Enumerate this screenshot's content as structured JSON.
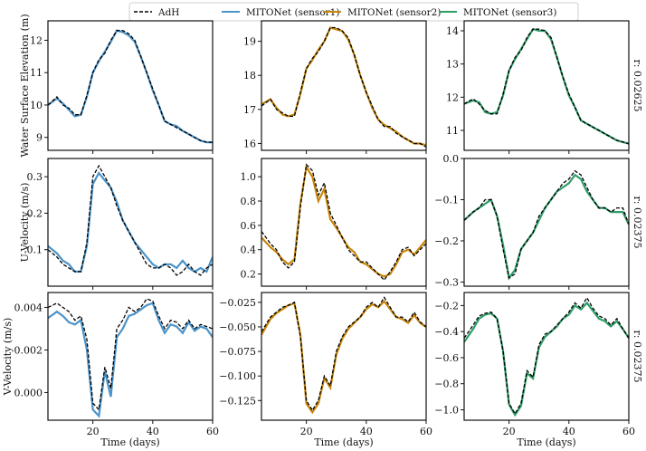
{
  "figure": {
    "legend": [
      {
        "label": "AdH",
        "color": "#000000",
        "dashed": true
      },
      {
        "label": "MITONet (sensor1)",
        "color": "#4a93c9",
        "dashed": false
      },
      {
        "label": "MITONet (sensor2)",
        "color": "#c8860a",
        "dashed": false
      },
      {
        "label": "MITONet (sensor3)",
        "color": "#2e9e68",
        "dashed": false
      }
    ]
  },
  "chart_data": {
    "type": "line",
    "x_label": "Time (days)",
    "xlim": [
      5,
      60
    ],
    "xticks": [
      20,
      40,
      60
    ],
    "x_knots": [
      5,
      8,
      10,
      12,
      14,
      16,
      18,
      20,
      22,
      24,
      26,
      28,
      30,
      32,
      34,
      36,
      38,
      40,
      42,
      44,
      46,
      48,
      50,
      52,
      54,
      56,
      58,
      60
    ],
    "rows": [
      {
        "ylabel": "Water Surface Elevation (m)",
        "r_label": "r: 0.02625",
        "panels": [
          {
            "ylim": [
              8.6,
              12.6
            ],
            "yticks": [
              9,
              10,
              11,
              12
            ],
            "ytick_labels": [
              "9",
              "10",
              "11",
              "12"
            ],
            "adh": [
              10.0,
              10.25,
              10.0,
              9.9,
              9.7,
              9.7,
              10.3,
              11.0,
              11.4,
              11.6,
              12.0,
              12.3,
              12.3,
              12.2,
              12.0,
              11.5,
              11.0,
              10.5,
              10.0,
              9.5,
              9.4,
              9.3,
              9.2,
              9.1,
              9.0,
              8.9,
              8.85,
              8.85
            ],
            "model": [
              10.0,
              10.2,
              10.05,
              9.85,
              9.65,
              9.7,
              10.25,
              11.0,
              11.35,
              11.65,
              11.95,
              12.3,
              12.25,
              12.15,
              11.95,
              11.5,
              11.0,
              10.45,
              10.0,
              9.5,
              9.4,
              9.35,
              9.2,
              9.1,
              9.0,
              8.9,
              8.85,
              8.85
            ],
            "model_color": "#4a93c9"
          },
          {
            "ylim": [
              15.8,
              19.6
            ],
            "yticks": [
              16,
              17,
              18,
              19
            ],
            "ytick_labels": [
              "16",
              "17",
              "18",
              "19"
            ],
            "adh": [
              17.1,
              17.3,
              17.0,
              16.9,
              16.8,
              16.8,
              17.5,
              18.2,
              18.5,
              18.7,
              19.0,
              19.4,
              19.4,
              19.3,
              19.1,
              18.6,
              18.0,
              17.5,
              17.1,
              16.7,
              16.5,
              16.5,
              16.3,
              16.2,
              16.1,
              16.0,
              16.0,
              15.9
            ],
            "model": [
              17.15,
              17.3,
              17.05,
              16.85,
              16.8,
              16.85,
              17.45,
              18.2,
              18.45,
              18.75,
              19.0,
              19.4,
              19.35,
              19.3,
              19.05,
              18.6,
              18.0,
              17.5,
              17.05,
              16.7,
              16.55,
              16.45,
              16.35,
              16.2,
              16.1,
              16.0,
              16.0,
              15.95
            ],
            "model_color": "#c8860a"
          },
          {
            "ylim": [
              10.4,
              14.3
            ],
            "yticks": [
              11,
              12,
              13,
              14
            ],
            "ytick_labels": [
              "11",
              "12",
              "13",
              "14"
            ],
            "adh": [
              11.8,
              11.95,
              11.8,
              11.6,
              11.5,
              11.5,
              12.1,
              12.8,
              13.2,
              13.4,
              13.8,
              14.05,
              14.05,
              14.0,
              13.8,
              13.2,
              12.6,
              12.1,
              11.7,
              11.3,
              11.2,
              11.1,
              11.0,
              10.9,
              10.8,
              10.7,
              10.65,
              10.6
            ],
            "model": [
              11.8,
              11.9,
              11.85,
              11.55,
              11.5,
              11.55,
              12.05,
              12.8,
              13.15,
              13.45,
              13.75,
              14.05,
              14.0,
              14.0,
              13.75,
              13.2,
              12.6,
              12.05,
              11.7,
              11.3,
              11.2,
              11.1,
              11.0,
              10.9,
              10.8,
              10.7,
              10.65,
              10.6
            ],
            "model_color": "#2e9e68"
          }
        ]
      },
      {
        "ylabel": "U-Velocity (m/s)",
        "r_label": "r: 0.02375",
        "panels": [
          {
            "ylim": [
              0.0,
              0.35
            ],
            "yticks": [
              0.1,
              0.2,
              0.3
            ],
            "ytick_labels": [
              "0.1",
              "0.2",
              "0.3"
            ],
            "adh": [
              0.1,
              0.08,
              0.06,
              0.05,
              0.04,
              0.04,
              0.12,
              0.3,
              0.33,
              0.3,
              0.27,
              0.22,
              0.18,
              0.15,
              0.12,
              0.09,
              0.06,
              0.05,
              0.05,
              0.06,
              0.05,
              0.03,
              0.04,
              0.06,
              0.04,
              0.03,
              0.05,
              0.06
            ],
            "model": [
              0.11,
              0.09,
              0.07,
              0.06,
              0.04,
              0.04,
              0.11,
              0.28,
              0.31,
              0.29,
              0.27,
              0.23,
              0.18,
              0.15,
              0.12,
              0.1,
              0.08,
              0.06,
              0.05,
              0.06,
              0.06,
              0.05,
              0.07,
              0.05,
              0.04,
              0.05,
              0.04,
              0.08
            ],
            "model_color": "#4a93c9"
          },
          {
            "ylim": [
              0.1,
              1.15
            ],
            "yticks": [
              0.2,
              0.4,
              0.6,
              0.8,
              1.0
            ],
            "ytick_labels": [
              "0.2",
              "0.4",
              "0.6",
              "0.8",
              "1.0"
            ],
            "adh": [
              0.55,
              0.45,
              0.4,
              0.3,
              0.25,
              0.3,
              0.75,
              1.1,
              1.05,
              0.85,
              0.95,
              0.7,
              0.6,
              0.5,
              0.4,
              0.35,
              0.3,
              0.3,
              0.25,
              0.2,
              0.15,
              0.22,
              0.3,
              0.4,
              0.42,
              0.35,
              0.4,
              0.45
            ],
            "model": [
              0.5,
              0.42,
              0.38,
              0.32,
              0.28,
              0.32,
              0.78,
              1.08,
              1.0,
              0.8,
              0.9,
              0.65,
              0.58,
              0.5,
              0.42,
              0.38,
              0.3,
              0.28,
              0.24,
              0.2,
              0.18,
              0.2,
              0.28,
              0.38,
              0.4,
              0.36,
              0.42,
              0.48
            ],
            "model_color": "#c8860a"
          },
          {
            "ylim": [
              -0.31,
              0.0
            ],
            "yticks": [
              -0.3,
              -0.2,
              -0.1,
              0.0
            ],
            "ytick_labels": [
              "−0.3",
              "−0.2",
              "−0.1",
              "0.0"
            ],
            "adh": [
              -0.15,
              -0.13,
              -0.12,
              -0.1,
              -0.1,
              -0.14,
              -0.22,
              -0.29,
              -0.28,
              -0.22,
              -0.2,
              -0.18,
              -0.14,
              -0.12,
              -0.1,
              -0.08,
              -0.06,
              -0.05,
              -0.03,
              -0.04,
              -0.07,
              -0.1,
              -0.12,
              -0.12,
              -0.13,
              -0.12,
              -0.12,
              -0.16
            ],
            "model": [
              -0.15,
              -0.13,
              -0.12,
              -0.11,
              -0.1,
              -0.14,
              -0.21,
              -0.29,
              -0.27,
              -0.22,
              -0.2,
              -0.18,
              -0.15,
              -0.12,
              -0.1,
              -0.08,
              -0.07,
              -0.06,
              -0.04,
              -0.05,
              -0.08,
              -0.1,
              -0.12,
              -0.12,
              -0.13,
              -0.13,
              -0.13,
              -0.16
            ],
            "model_color": "#2e9e68"
          }
        ]
      },
      {
        "ylabel": "V-Velocity (m/s)",
        "r_label": "r: 0.02375",
        "panels": [
          {
            "ylim": [
              -0.0013,
              0.0047
            ],
            "yticks": [
              0.0,
              0.002,
              0.004
            ],
            "ytick_labels": [
              "0.000",
              "0.002",
              "0.004"
            ],
            "adh": [
              0.004,
              0.0042,
              0.004,
              0.0038,
              0.0034,
              0.0036,
              0.0025,
              -0.0005,
              -0.0008,
              0.0012,
              0.0002,
              0.003,
              0.0034,
              0.004,
              0.0038,
              0.004,
              0.0044,
              0.0043,
              0.0036,
              0.003,
              0.0034,
              0.0033,
              0.003,
              0.0034,
              0.003,
              0.0032,
              0.0031,
              0.003
            ],
            "model": [
              0.0035,
              0.0038,
              0.0036,
              0.0033,
              0.0032,
              0.0034,
              0.002,
              -0.0008,
              -0.0011,
              0.001,
              -0.0002,
              0.0026,
              0.003,
              0.0036,
              0.0037,
              0.0039,
              0.0041,
              0.0042,
              0.0034,
              0.0028,
              0.0032,
              0.0031,
              0.0028,
              0.0033,
              0.0029,
              0.0031,
              0.003,
              0.0026
            ],
            "model_color": "#4a93c9"
          },
          {
            "ylim": [
              -0.145,
              -0.015
            ],
            "yticks": [
              -0.125,
              -0.1,
              -0.075,
              -0.05,
              -0.025
            ],
            "ytick_labels": [
              "−0.125",
              "−0.100",
              "−0.075",
              "−0.050",
              "−0.025"
            ],
            "adh": [
              -0.055,
              -0.04,
              -0.035,
              -0.03,
              -0.028,
              -0.025,
              -0.06,
              -0.125,
              -0.135,
              -0.125,
              -0.1,
              -0.11,
              -0.075,
              -0.06,
              -0.05,
              -0.045,
              -0.04,
              -0.03,
              -0.025,
              -0.03,
              -0.02,
              -0.03,
              -0.04,
              -0.04,
              -0.045,
              -0.035,
              -0.045,
              -0.05
            ],
            "model": [
              -0.058,
              -0.042,
              -0.036,
              -0.032,
              -0.028,
              -0.026,
              -0.058,
              -0.128,
              -0.137,
              -0.128,
              -0.102,
              -0.112,
              -0.078,
              -0.062,
              -0.052,
              -0.046,
              -0.04,
              -0.032,
              -0.027,
              -0.03,
              -0.024,
              -0.032,
              -0.04,
              -0.042,
              -0.046,
              -0.038,
              -0.046,
              -0.05
            ],
            "model_color": "#c8860a"
          },
          {
            "ylim": [
              -1.08,
              -0.1
            ],
            "yticks": [
              -1.0,
              -0.8,
              -0.6,
              -0.4,
              -0.2
            ],
            "ytick_labels": [
              "−1.0",
              "−0.8",
              "−0.6",
              "−0.4",
              "−0.2"
            ],
            "adh": [
              -0.45,
              -0.35,
              -0.28,
              -0.26,
              -0.25,
              -0.3,
              -0.55,
              -0.95,
              -1.03,
              -0.95,
              -0.7,
              -0.75,
              -0.5,
              -0.42,
              -0.4,
              -0.35,
              -0.3,
              -0.25,
              -0.18,
              -0.22,
              -0.14,
              -0.22,
              -0.28,
              -0.3,
              -0.35,
              -0.3,
              -0.38,
              -0.45
            ],
            "model": [
              -0.48,
              -0.38,
              -0.3,
              -0.27,
              -0.26,
              -0.3,
              -0.55,
              -0.96,
              -1.04,
              -0.97,
              -0.72,
              -0.76,
              -0.52,
              -0.44,
              -0.4,
              -0.36,
              -0.3,
              -0.27,
              -0.2,
              -0.23,
              -0.18,
              -0.24,
              -0.3,
              -0.32,
              -0.36,
              -0.32,
              -0.38,
              -0.45
            ],
            "model_color": "#2e9e68"
          }
        ]
      }
    ]
  }
}
